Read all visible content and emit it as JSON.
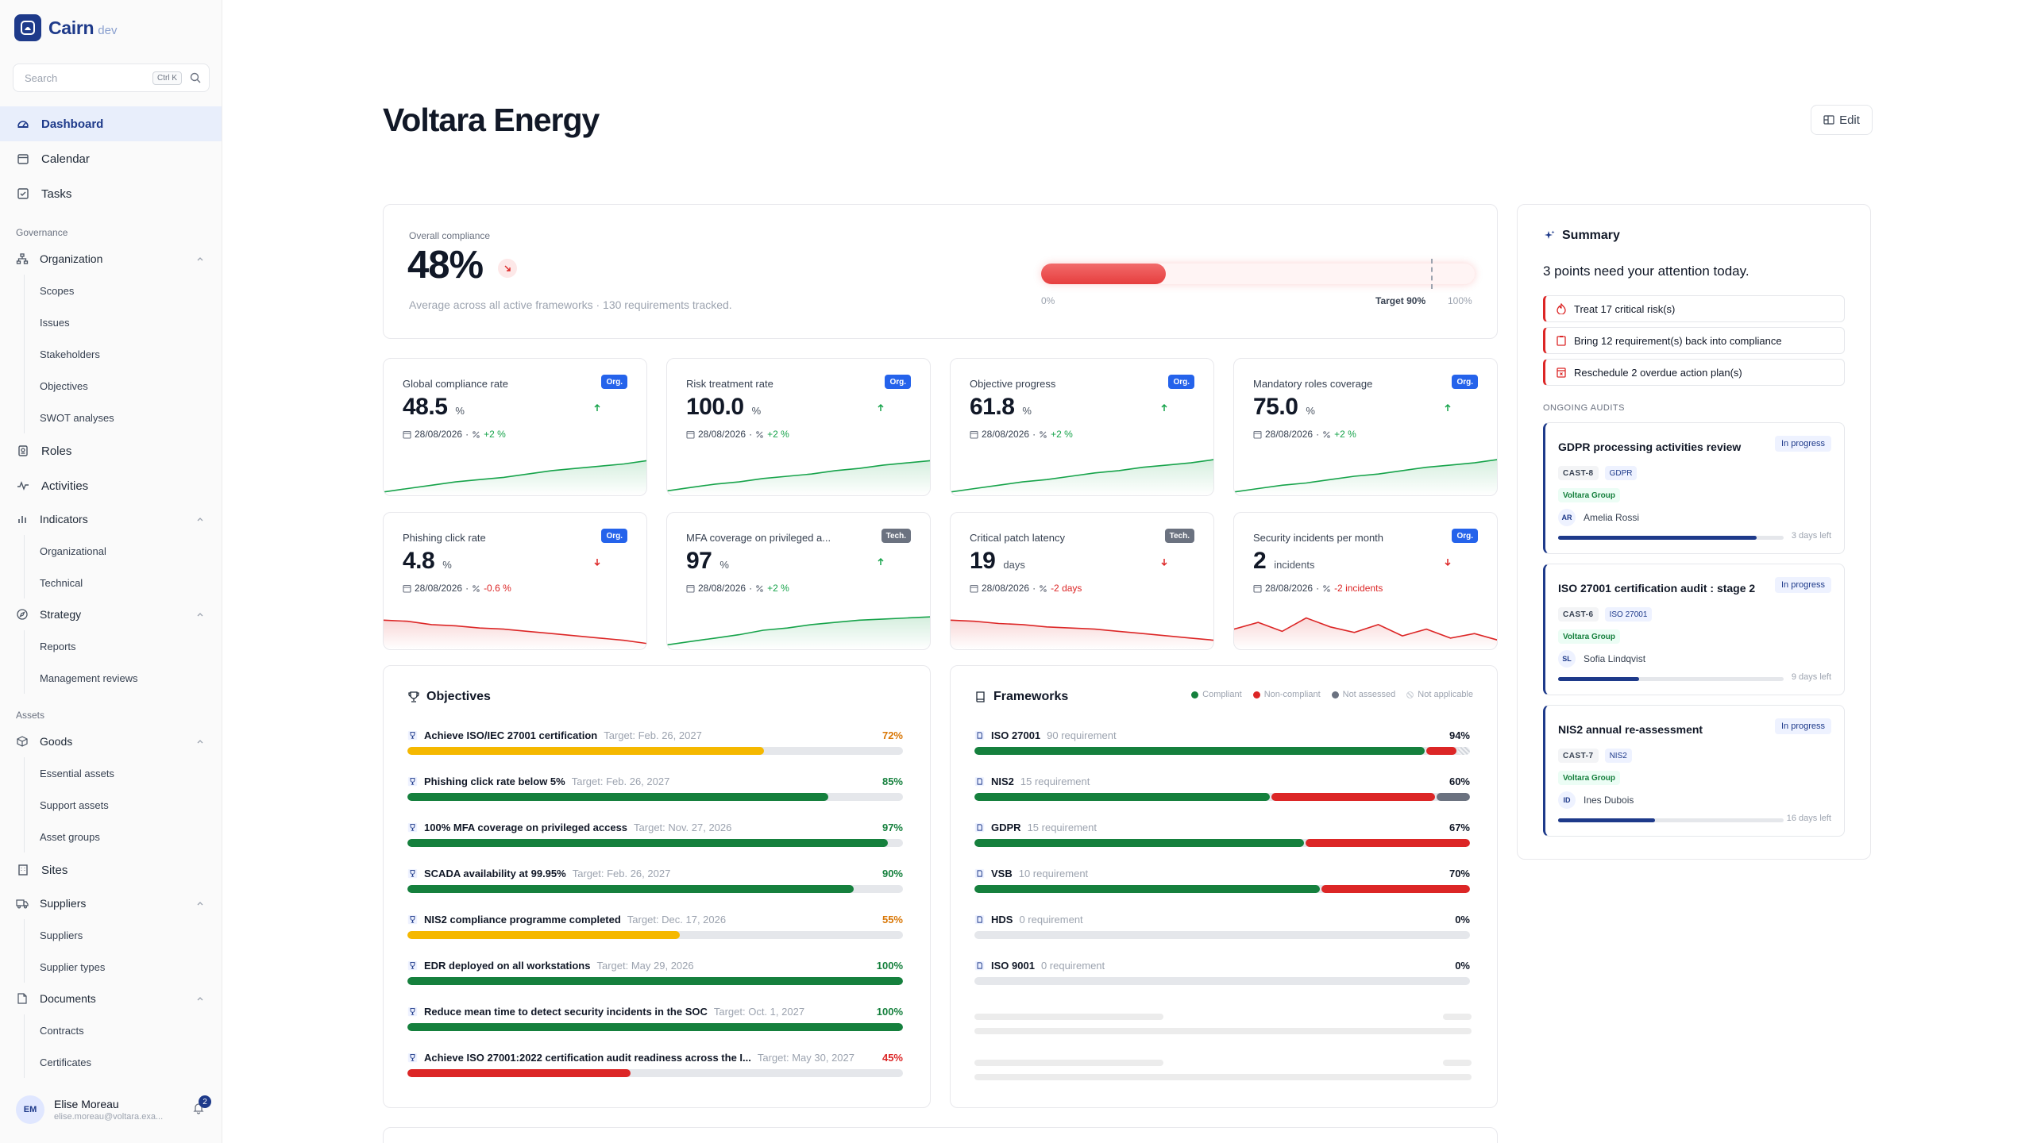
{
  "app": {
    "name": "Cairn",
    "env": "dev"
  },
  "search": {
    "placeholder": "Search",
    "shortcut": "Ctrl K"
  },
  "nav": {
    "dashboard": "Dashboard",
    "calendar": "Calendar",
    "tasks": "Tasks",
    "governance_label": "Governance",
    "organization": "Organization",
    "organization_items": [
      "Scopes",
      "Issues",
      "Stakeholders",
      "Objectives",
      "SWOT analyses"
    ],
    "roles": "Roles",
    "activities": "Activities",
    "indicators": "Indicators",
    "indicators_items": [
      "Organizational",
      "Technical"
    ],
    "strategy": "Strategy",
    "strategy_items": [
      "Reports",
      "Management reviews"
    ],
    "assets_label": "Assets",
    "goods": "Goods",
    "goods_items": [
      "Essential assets",
      "Support assets",
      "Asset groups"
    ],
    "sites": "Sites",
    "suppliers": "Suppliers",
    "suppliers_items": [
      "Suppliers",
      "Supplier types"
    ],
    "documents": "Documents",
    "documents_items": [
      "Contracts",
      "Certificates"
    ]
  },
  "user": {
    "initials": "EM",
    "name": "Elise Moreau",
    "email": "elise.moreau@voltara.exa...",
    "notifications": "2"
  },
  "page": {
    "title": "Voltara Energy",
    "edit_label": "Edit"
  },
  "overall": {
    "label": "Overall compliance",
    "value": "48%",
    "subtitle": "Average across all active frameworks · 130 requirements tracked.",
    "progress": 0.48,
    "target": 0.9,
    "min_label": "0%",
    "target_label": "Target 90%",
    "max_label": "100%",
    "trend": "down"
  },
  "kpis": [
    {
      "name": "Global compliance rate",
      "tag": "Org.",
      "value": "48.5",
      "unit": "%",
      "date": "28/08/2026",
      "delta": "+2 %",
      "direction": "up",
      "spark": [
        3,
        6,
        9,
        12,
        14,
        16,
        19,
        22,
        24,
        26,
        28,
        31
      ]
    },
    {
      "name": "Risk treatment rate",
      "tag": "Org.",
      "value": "100.0",
      "unit": "%",
      "date": "28/08/2026",
      "delta": "+2 %",
      "direction": "up",
      "spark": [
        4,
        7,
        10,
        12,
        15,
        17,
        19,
        22,
        24,
        27,
        29,
        31
      ]
    },
    {
      "name": "Objective progress",
      "tag": "Org.",
      "value": "61.8",
      "unit": "%",
      "date": "28/08/2026",
      "delta": "+2 %",
      "direction": "up",
      "spark": [
        3,
        6,
        9,
        12,
        14,
        17,
        20,
        22,
        25,
        27,
        29,
        32
      ]
    },
    {
      "name": "Mandatory roles coverage",
      "tag": "Org.",
      "value": "75.0",
      "unit": "%",
      "date": "28/08/2026",
      "delta": "+2 %",
      "direction": "up",
      "spark": [
        3,
        6,
        9,
        11,
        14,
        17,
        19,
        22,
        25,
        27,
        29,
        32
      ]
    },
    {
      "name": "Phishing click rate",
      "tag": "Org.",
      "value": "4.8",
      "unit": "%",
      "date": "28/08/2026",
      "delta": "-0.6 %",
      "direction": "down",
      "spark": [
        26,
        25,
        22,
        21,
        19,
        18,
        16,
        14,
        12,
        10,
        8,
        5
      ]
    },
    {
      "name": "MFA coverage on privileged a...",
      "tag": "Tech.",
      "value": "97",
      "unit": "%",
      "date": "28/08/2026",
      "delta": "+2 %",
      "direction": "up",
      "spark": [
        4,
        7,
        10,
        13,
        17,
        19,
        22,
        24,
        26,
        27,
        28,
        29
      ]
    },
    {
      "name": "Critical patch latency",
      "tag": "Tech.",
      "value": "19",
      "unit": "days",
      "date": "28/08/2026",
      "delta": "-2 days",
      "direction": "down",
      "spark": [
        26,
        25,
        23,
        22,
        20,
        19,
        18,
        16,
        14,
        12,
        10,
        8
      ]
    },
    {
      "name": "Security incidents per month",
      "tag": "Org.",
      "value": "2",
      "unit": "incidents",
      "date": "28/08/2026",
      "delta": "-2 incidents",
      "direction": "down",
      "spark": [
        18,
        24,
        16,
        28,
        20,
        15,
        22,
        12,
        18,
        10,
        14,
        8
      ]
    }
  ],
  "objectives": {
    "title": "Objectives",
    "items": [
      {
        "name": "Achieve ISO/IEC 27001 certification",
        "target": "Target: Feb. 26, 2027",
        "pct": "72%",
        "value": 72
      },
      {
        "name": "Phishing click rate below 5%",
        "target": "Target: Feb. 26, 2027",
        "pct": "85%",
        "value": 85
      },
      {
        "name": "100% MFA coverage on privileged access",
        "target": "Target: Nov. 27, 2026",
        "pct": "97%",
        "value": 97
      },
      {
        "name": "SCADA availability at 99.95%",
        "target": "Target: Feb. 26, 2027",
        "pct": "90%",
        "value": 90
      },
      {
        "name": "NIS2 compliance programme completed",
        "target": "Target: Dec. 17, 2026",
        "pct": "55%",
        "value": 55
      },
      {
        "name": "EDR deployed on all workstations",
        "target": "Target: May 29, 2026",
        "pct": "100%",
        "value": 100
      },
      {
        "name": "Reduce mean time to detect security incidents in the SOC",
        "target": "Target: Oct. 1, 2027",
        "pct": "100%",
        "value": 100
      },
      {
        "name": "Achieve ISO 27001:2022 certification audit readiness across the I...",
        "target": "Target: May 30, 2027",
        "pct": "45%",
        "value": 45
      }
    ]
  },
  "frameworks": {
    "title": "Frameworks",
    "legend": [
      "Compliant",
      "Non-compliant",
      "Not assessed",
      "Not applicable"
    ],
    "colors": {
      "compliant": "#15803d",
      "non_compliant": "#dc2626",
      "not_assessed": "#6b7280",
      "not_applicable": "#e5e7eb"
    },
    "items": [
      {
        "name": "ISO 27001",
        "count": "90 requirement",
        "pct": "94%",
        "segments": [
          0.915,
          0.06,
          0,
          0.025
        ]
      },
      {
        "name": "NIS2",
        "count": "15 requirement",
        "pct": "60%",
        "segments": [
          0.6,
          0.333,
          0.067,
          0
        ]
      },
      {
        "name": "GDPR",
        "count": "15 requirement",
        "pct": "67%",
        "segments": [
          0.667,
          0.333,
          0,
          0
        ]
      },
      {
        "name": "VSB",
        "count": "10 requirement",
        "pct": "70%",
        "segments": [
          0.7,
          0.3,
          0,
          0
        ]
      },
      {
        "name": "HDS",
        "count": "0 requirement",
        "pct": "0%",
        "segments": [
          0,
          0,
          0,
          0
        ]
      },
      {
        "name": "ISO 9001",
        "count": "0 requirement",
        "pct": "0%",
        "segments": [
          0,
          0,
          0,
          0
        ]
      }
    ]
  },
  "summary": {
    "title": "Summary",
    "headline": "3 points need your attention today.",
    "alerts": [
      "Treat 17 critical risk(s)",
      "Bring 12 requirement(s) back into compliance",
      "Reschedule 2 overdue action plan(s)"
    ],
    "audits_label": "ONGOING AUDITS",
    "audits": [
      {
        "title": "GDPR processing activities review",
        "status": "In progress",
        "code": "CAST-8",
        "framework": "GDPR",
        "org": "Voltara Group",
        "initials": "AR",
        "user": "Amelia Rossi",
        "progress": 0.88,
        "left": "3 days left"
      },
      {
        "title": "ISO 27001 certification audit : stage 2",
        "status": "In progress",
        "code": "CAST-6",
        "framework": "ISO 27001",
        "org": "Voltara Group",
        "initials": "SL",
        "user": "Sofia Lindqvist",
        "progress": 0.36,
        "left": "9 days left"
      },
      {
        "title": "NIS2 annual re-assessment",
        "status": "In progress",
        "code": "CAST-7",
        "framework": "NIS2",
        "org": "Voltara Group",
        "initials": "ID",
        "user": "Ines Dubois",
        "progress": 0.43,
        "left": "16 days left"
      }
    ]
  }
}
